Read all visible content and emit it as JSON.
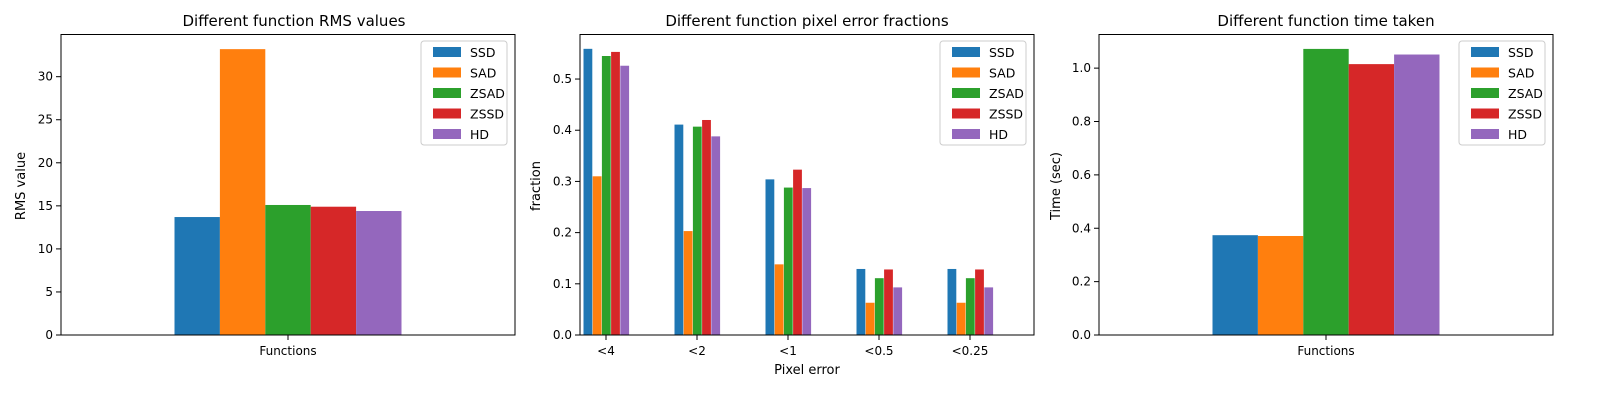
{
  "series_colors": [
    "#1f77b4",
    "#ff7f0e",
    "#2ca02c",
    "#d62728",
    "#9467bd"
  ],
  "chart_data": [
    {
      "type": "bar",
      "title": "Different function RMS values",
      "xlabel": "",
      "ylabel": "RMS value",
      "categories": [
        "Functions"
      ],
      "series": [
        {
          "name": "SSD",
          "values": [
            13.7
          ]
        },
        {
          "name": "SAD",
          "values": [
            33.2
          ]
        },
        {
          "name": "ZSAD",
          "values": [
            15.1
          ]
        },
        {
          "name": "ZSSD",
          "values": [
            14.9
          ]
        },
        {
          "name": "HD",
          "values": [
            14.4
          ]
        }
      ],
      "ylim": [
        0,
        34.9
      ],
      "yticks": [
        0,
        5,
        10,
        15,
        20,
        25,
        30
      ],
      "grid": false,
      "legend": "top-right"
    },
    {
      "type": "bar",
      "title": "Different function pixel error fractions",
      "xlabel": "Pixel error",
      "ylabel": "fraction",
      "categories": [
        "<4",
        "<2",
        "<1",
        "<0.5",
        "<0.25"
      ],
      "series": [
        {
          "name": "SSD",
          "values": [
            0.559,
            0.411,
            0.304,
            0.129,
            0.129
          ]
        },
        {
          "name": "SAD",
          "values": [
            0.31,
            0.203,
            0.138,
            0.063,
            0.063
          ]
        },
        {
          "name": "ZSAD",
          "values": [
            0.545,
            0.407,
            0.288,
            0.111,
            0.111
          ]
        },
        {
          "name": "ZSSD",
          "values": [
            0.553,
            0.42,
            0.323,
            0.128,
            0.128
          ]
        },
        {
          "name": "HD",
          "values": [
            0.526,
            0.388,
            0.287,
            0.093,
            0.093
          ]
        }
      ],
      "ylim": [
        0,
        0.587
      ],
      "yticks": [
        "0.0",
        "0.1",
        "0.2",
        "0.3",
        "0.4",
        "0.5"
      ],
      "grid": false,
      "legend": "top-right"
    },
    {
      "type": "bar",
      "title": "Different function time taken",
      "xlabel": "",
      "ylabel": "Time (sec)",
      "categories": [
        "Functions"
      ],
      "series": [
        {
          "name": "SSD",
          "values": [
            0.374
          ]
        },
        {
          "name": "SAD",
          "values": [
            0.371
          ]
        },
        {
          "name": "ZSAD",
          "values": [
            1.072
          ]
        },
        {
          "name": "ZSSD",
          "values": [
            1.015
          ]
        },
        {
          "name": "HD",
          "values": [
            1.051
          ]
        }
      ],
      "ylim": [
        0,
        1.126
      ],
      "yticks": [
        "0.0",
        "0.2",
        "0.4",
        "0.6",
        "0.8",
        "1.0"
      ],
      "grid": false,
      "legend": "top-right"
    }
  ]
}
